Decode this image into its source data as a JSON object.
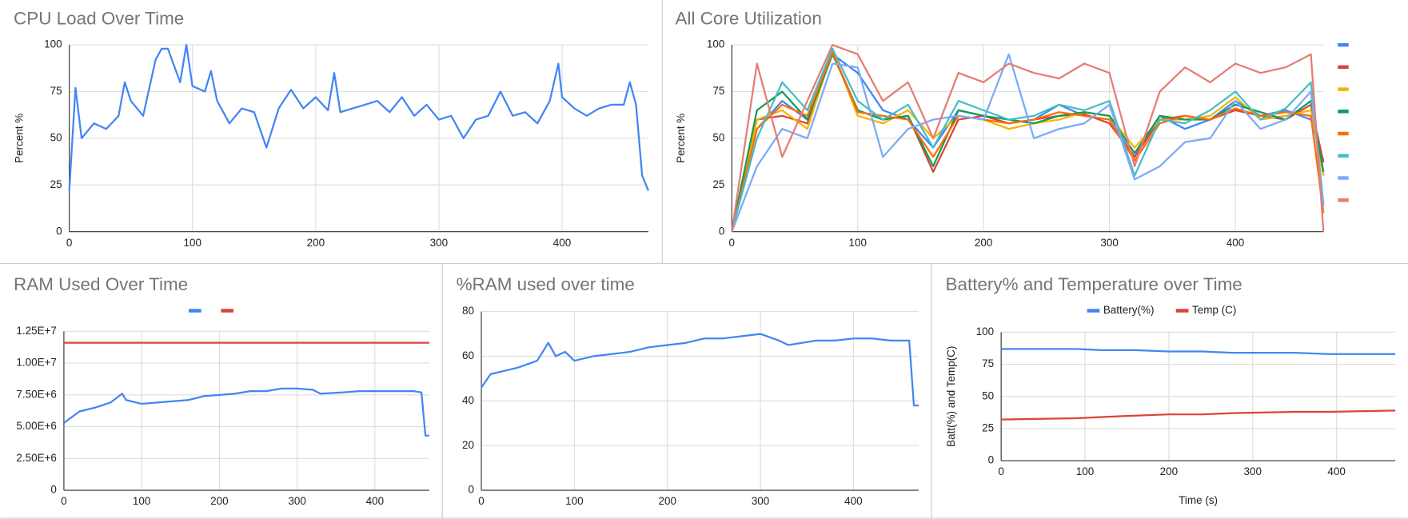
{
  "chart_data": [
    {
      "type": "line",
      "title": "CPU Load Over Time",
      "y_label": "Percent %",
      "xlim": [
        0,
        470
      ],
      "xticks": [
        0,
        100,
        200,
        300,
        400
      ],
      "ylim": [
        0,
        100
      ],
      "yticks": [
        0,
        25,
        50,
        75,
        100
      ],
      "grid": true,
      "x": [
        0,
        5,
        10,
        20,
        30,
        40,
        45,
        50,
        60,
        70,
        75,
        80,
        90,
        95,
        100,
        110,
        115,
        120,
        130,
        140,
        150,
        160,
        170,
        180,
        190,
        200,
        210,
        215,
        220,
        230,
        240,
        250,
        260,
        270,
        280,
        290,
        300,
        310,
        320,
        330,
        340,
        350,
        360,
        370,
        380,
        390,
        397,
        400,
        410,
        420,
        430,
        440,
        450,
        455,
        460,
        465,
        470
      ],
      "series": [
        {
          "color": "#4285f4",
          "values": [
            22,
            77,
            50,
            58,
            55,
            62,
            80,
            70,
            62,
            92,
            98,
            98,
            80,
            100,
            78,
            75,
            86,
            70,
            58,
            66,
            64,
            45,
            66,
            76,
            66,
            72,
            65,
            85,
            64,
            66,
            68,
            70,
            64,
            72,
            62,
            68,
            60,
            62,
            50,
            60,
            62,
            75,
            62,
            64,
            58,
            70,
            90,
            72,
            66,
            62,
            66,
            68,
            68,
            80,
            68,
            30,
            22
          ]
        }
      ]
    },
    {
      "type": "line",
      "title": "All Core Utilization",
      "y_label": "Percent %",
      "xlim": [
        0,
        470
      ],
      "xticks": [
        0,
        100,
        200,
        300,
        400
      ],
      "ylim": [
        0,
        100
      ],
      "yticks": [
        0,
        25,
        50,
        75,
        100
      ],
      "grid": true,
      "legend": "right",
      "x": [
        0,
        20,
        40,
        60,
        80,
        100,
        120,
        140,
        160,
        180,
        200,
        220,
        240,
        260,
        280,
        300,
        320,
        340,
        360,
        380,
        400,
        420,
        440,
        460,
        470
      ],
      "series": [
        {
          "color": "#4285f4",
          "values": [
            0,
            55,
            70,
            60,
            95,
            85,
            65,
            60,
            45,
            65,
            62,
            58,
            60,
            68,
            62,
            60,
            40,
            62,
            55,
            60,
            70,
            62,
            65,
            60,
            38
          ]
        },
        {
          "color": "#db4437",
          "values": [
            0,
            60,
            62,
            58,
            96,
            65,
            60,
            62,
            32,
            60,
            62,
            58,
            60,
            62,
            63,
            58,
            40,
            60,
            62,
            60,
            65,
            62,
            60,
            68,
            37
          ]
        },
        {
          "color": "#f4b400",
          "values": [
            0,
            60,
            65,
            55,
            97,
            62,
            58,
            65,
            50,
            62,
            60,
            55,
            58,
            60,
            64,
            62,
            45,
            60,
            60,
            62,
            72,
            60,
            62,
            65,
            30
          ]
        },
        {
          "color": "#0f9d58",
          "values": [
            0,
            65,
            75,
            60,
            95,
            65,
            60,
            62,
            35,
            65,
            62,
            60,
            58,
            62,
            64,
            62,
            42,
            62,
            60,
            60,
            68,
            64,
            60,
            70,
            32
          ]
        },
        {
          "color": "#ff6d01",
          "values": [
            0,
            55,
            68,
            62,
            96,
            64,
            62,
            60,
            40,
            62,
            60,
            58,
            60,
            64,
            62,
            60,
            38,
            58,
            62,
            60,
            66,
            62,
            64,
            62,
            10
          ]
        },
        {
          "color": "#46bdc6",
          "values": [
            0,
            50,
            80,
            65,
            98,
            70,
            60,
            68,
            45,
            70,
            65,
            60,
            62,
            68,
            65,
            70,
            30,
            60,
            58,
            65,
            75,
            60,
            66,
            80,
            15
          ]
        },
        {
          "color": "#7baaf7",
          "values": [
            0,
            35,
            55,
            50,
            90,
            88,
            40,
            55,
            60,
            62,
            60,
            95,
            50,
            55,
            58,
            68,
            28,
            35,
            48,
            50,
            70,
            55,
            60,
            75,
            14
          ]
        },
        {
          "color": "#e67c73",
          "values": [
            0,
            90,
            40,
            70,
            100,
            95,
            70,
            80,
            50,
            85,
            80,
            90,
            85,
            82,
            90,
            85,
            35,
            75,
            88,
            80,
            90,
            85,
            88,
            95,
            0
          ]
        }
      ]
    },
    {
      "type": "line",
      "title": "RAM Used Over Time",
      "xlim": [
        0,
        470
      ],
      "xticks": [
        0,
        100,
        200,
        300,
        400
      ],
      "ylim": [
        0,
        12500000
      ],
      "yticks": [
        0,
        {
          "value": 2500000,
          "label": "2.50E+6"
        },
        {
          "value": 5000000,
          "label": "5.00E+6"
        },
        {
          "value": 7500000,
          "label": "7.50E+6"
        },
        {
          "value": 10000000,
          "label": "1.00E+7"
        },
        {
          "value": 12500000,
          "label": "1.25E+7"
        }
      ],
      "grid": true,
      "legend": "top",
      "x": [
        0,
        20,
        40,
        60,
        75,
        80,
        100,
        120,
        140,
        160,
        180,
        200,
        220,
        240,
        260,
        280,
        300,
        320,
        330,
        360,
        380,
        400,
        420,
        450,
        460,
        465,
        470
      ],
      "series": [
        {
          "color": "#4285f4",
          "values": [
            5300000,
            6200000,
            6500000,
            6900000,
            7600000,
            7100000,
            6800000,
            6900000,
            7000000,
            7100000,
            7400000,
            7500000,
            7600000,
            7800000,
            7800000,
            8000000,
            8000000,
            7900000,
            7600000,
            7700000,
            7800000,
            7800000,
            7800000,
            7800000,
            7700000,
            4300000,
            4300000
          ]
        },
        {
          "color": "#db4437",
          "values": [
            11600000,
            11600000,
            11600000,
            11600000,
            11600000,
            11600000,
            11600000,
            11600000,
            11600000,
            11600000,
            11600000,
            11600000,
            11600000,
            11600000,
            11600000,
            11600000,
            11600000,
            11600000,
            11600000,
            11600000,
            11600000,
            11600000,
            11600000,
            11600000,
            11600000,
            11600000,
            11600000
          ]
        }
      ]
    },
    {
      "type": "line",
      "title": "%RAM used over time",
      "xlim": [
        0,
        470
      ],
      "xticks": [
        0,
        100,
        200,
        300,
        400
      ],
      "ylim": [
        0,
        80
      ],
      "yticks": [
        0,
        20,
        40,
        60,
        80
      ],
      "grid": true,
      "x": [
        0,
        10,
        20,
        40,
        60,
        72,
        80,
        90,
        100,
        120,
        140,
        160,
        180,
        200,
        220,
        240,
        260,
        280,
        300,
        320,
        330,
        360,
        380,
        400,
        420,
        440,
        460,
        465,
        470
      ],
      "series": [
        {
          "color": "#4285f4",
          "values": [
            46,
            52,
            53,
            55,
            58,
            66,
            60,
            62,
            58,
            60,
            61,
            62,
            64,
            65,
            66,
            68,
            68,
            69,
            70,
            67,
            65,
            67,
            67,
            68,
            68,
            67,
            67,
            38,
            38
          ]
        }
      ]
    },
    {
      "type": "line",
      "title": "Battery% and Temperature over Time",
      "x_label": "Time (s)",
      "y_label": "Batt(%) and Temp(C)",
      "xlim": [
        0,
        470
      ],
      "xticks": [
        0,
        100,
        200,
        300,
        400
      ],
      "ylim": [
        0,
        100
      ],
      "yticks": [
        0,
        25,
        50,
        75,
        100
      ],
      "grid": true,
      "legend": "top",
      "x": [
        0,
        90,
        120,
        160,
        200,
        240,
        275,
        350,
        390,
        470
      ],
      "series": [
        {
          "name": "Battery(%)",
          "color": "#4285f4",
          "values": [
            87,
            87,
            86,
            86,
            85,
            85,
            84,
            84,
            83,
            83
          ]
        },
        {
          "name": "Temp (C)",
          "color": "#db4437",
          "values": [
            32,
            33,
            34,
            35,
            36,
            36,
            37,
            38,
            38,
            39
          ]
        }
      ]
    }
  ]
}
